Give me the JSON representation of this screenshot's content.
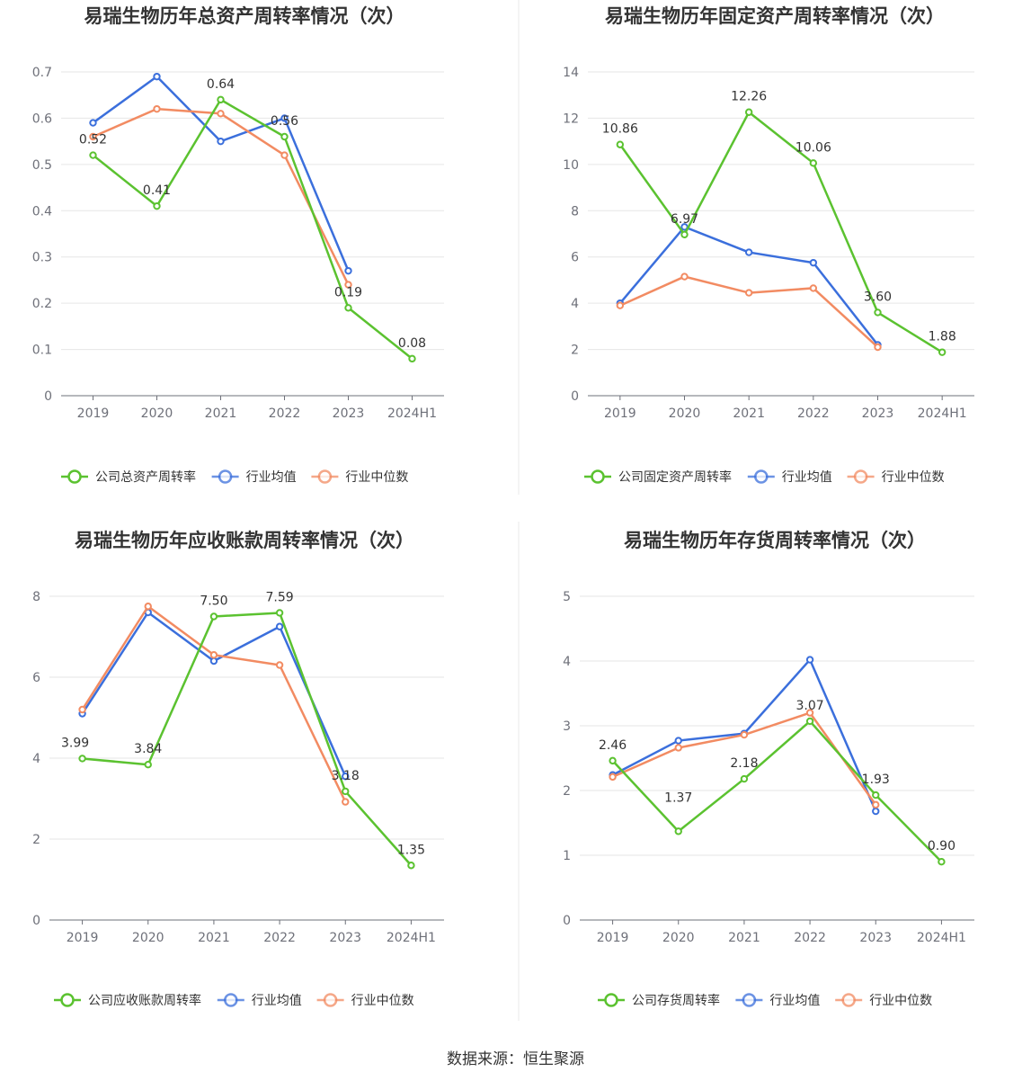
{
  "source_label": "数据来源：恒生聚源",
  "colors": {
    "company": "#5bc230",
    "avg": "#3b6fdc",
    "median": "#f28b62"
  },
  "chart_data": [
    {
      "type": "line",
      "title": "易瑞生物历年总资产周转率情况（次）",
      "categories": [
        "2019",
        "2020",
        "2021",
        "2022",
        "2023",
        "2024H1"
      ],
      "ylim": [
        0,
        0.7
      ],
      "yticks": [
        0,
        0.1,
        0.2,
        0.3,
        0.4,
        0.5,
        0.6,
        0.7
      ],
      "ytick_labels": [
        "0",
        "0.1",
        "0.2",
        "0.3",
        "0.4",
        "0.5",
        "0.6",
        "0.7"
      ],
      "series": [
        {
          "name": "公司总资产周转率",
          "values": [
            0.52,
            0.41,
            0.64,
            0.56,
            0.19,
            0.08
          ],
          "labels": [
            "0.52",
            "0.41",
            "0.64",
            "0.56",
            "0.19",
            "0.08"
          ]
        },
        {
          "name": "行业均值",
          "values": [
            0.59,
            0.69,
            0.55,
            0.6,
            0.27,
            null
          ]
        },
        {
          "name": "行业中位数",
          "values": [
            0.56,
            0.62,
            0.61,
            0.52,
            0.24,
            null
          ]
        }
      ]
    },
    {
      "type": "line",
      "title": "易瑞生物历年固定资产周转率情况（次）",
      "categories": [
        "2019",
        "2020",
        "2021",
        "2022",
        "2023",
        "2024H1"
      ],
      "ylim": [
        0,
        14
      ],
      "yticks": [
        0,
        2,
        4,
        6,
        8,
        10,
        12,
        14
      ],
      "ytick_labels": [
        "0",
        "2",
        "4",
        "6",
        "8",
        "10",
        "12",
        "14"
      ],
      "series": [
        {
          "name": "公司固定资产周转率",
          "values": [
            10.86,
            6.97,
            12.26,
            10.06,
            3.6,
            1.88
          ],
          "labels": [
            "10.86",
            "6.97",
            "12.26",
            "10.06",
            "3.60",
            "1.88"
          ]
        },
        {
          "name": "行业均值",
          "values": [
            4.0,
            7.3,
            6.2,
            5.75,
            2.2,
            null
          ]
        },
        {
          "name": "行业中位数",
          "values": [
            3.9,
            5.15,
            4.45,
            4.65,
            2.1,
            null
          ]
        }
      ]
    },
    {
      "type": "line",
      "title": "易瑞生物历年应收账款周转率情况（次）",
      "categories": [
        "2019",
        "2020",
        "2021",
        "2022",
        "2023",
        "2024H1"
      ],
      "ylim": [
        0,
        8
      ],
      "yticks": [
        0,
        2,
        4,
        6,
        8
      ],
      "ytick_labels": [
        "0",
        "2",
        "4",
        "6",
        "8"
      ],
      "series": [
        {
          "name": "公司应收账款周转率",
          "values": [
            3.99,
            3.84,
            7.5,
            7.59,
            3.18,
            1.35
          ],
          "labels": [
            "3.99",
            "3.84",
            "7.50",
            "7.59",
            "3.18",
            "1.35"
          ]
        },
        {
          "name": "行业均值",
          "values": [
            5.1,
            7.6,
            6.4,
            7.25,
            3.55,
            null
          ]
        },
        {
          "name": "行业中位数",
          "values": [
            5.2,
            7.75,
            6.55,
            6.3,
            2.92,
            null
          ]
        }
      ]
    },
    {
      "type": "line",
      "title": "易瑞生物历年存货周转率情况（次）",
      "categories": [
        "2019",
        "2020",
        "2021",
        "2022",
        "2023",
        "2024H1"
      ],
      "ylim": [
        0,
        5
      ],
      "yticks": [
        0,
        1,
        2,
        3,
        4,
        5
      ],
      "ytick_labels": [
        "0",
        "1",
        "2",
        "3",
        "4",
        "5"
      ],
      "series": [
        {
          "name": "公司存货周转率",
          "values": [
            2.46,
            1.37,
            2.18,
            3.07,
            1.93,
            0.9
          ],
          "labels": [
            "2.46",
            "1.37",
            "2.18",
            "3.07",
            "1.93",
            "0.90"
          ]
        },
        {
          "name": "行业均值",
          "values": [
            2.24,
            2.77,
            2.88,
            4.02,
            1.68,
            null
          ]
        },
        {
          "name": "行业中位数",
          "values": [
            2.21,
            2.66,
            2.86,
            3.2,
            1.78,
            null
          ]
        }
      ]
    }
  ]
}
